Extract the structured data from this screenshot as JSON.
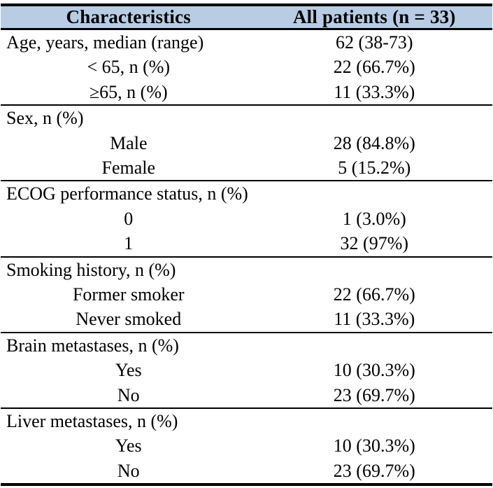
{
  "colors": {
    "header_bg": "#b8cce4",
    "rule": "#000000",
    "text": "#000000"
  },
  "table": {
    "columns": [
      "Characteristics",
      "All patients (n = 33)"
    ],
    "rows": [
      {
        "label": "Age, years, median (range)",
        "value": "62 (38-73)",
        "type": "category",
        "divider": false
      },
      {
        "label": "< 65, n (%)",
        "value": "22 (66.7%)",
        "type": "sub",
        "divider": false
      },
      {
        "label": "≥65, n (%)",
        "value": "11 (33.3%)",
        "type": "sub",
        "divider": false
      },
      {
        "label": "Sex, n (%)",
        "value": "",
        "type": "category",
        "divider": true
      },
      {
        "label": "Male",
        "value": "28 (84.8%)",
        "type": "sub",
        "divider": false
      },
      {
        "label": "Female",
        "value": "5 (15.2%)",
        "type": "sub",
        "divider": false
      },
      {
        "label": "ECOG performance status, n (%)",
        "value": "",
        "type": "category",
        "divider": true
      },
      {
        "label": "0",
        "value": "1 (3.0%)",
        "type": "sub",
        "divider": false
      },
      {
        "label": "1",
        "value": "32 (97%)",
        "type": "sub",
        "divider": false
      },
      {
        "label": "Smoking history, n (%)",
        "value": "",
        "type": "category",
        "divider": true
      },
      {
        "label": "Former smoker",
        "value": "22 (66.7%)",
        "type": "sub",
        "divider": false
      },
      {
        "label": "Never smoked",
        "value": "11 (33.3%)",
        "type": "sub",
        "divider": false
      },
      {
        "label": "Brain metastases, n (%)",
        "value": "",
        "type": "category",
        "divider": true
      },
      {
        "label": "Yes",
        "value": "10 (30.3%)",
        "type": "sub",
        "divider": false
      },
      {
        "label": "No",
        "value": "23 (69.7%)",
        "type": "sub",
        "divider": false
      },
      {
        "label": "Liver metastases, n (%)",
        "value": "",
        "type": "category",
        "divider": true
      },
      {
        "label": "Yes",
        "value": "10 (30.3%)",
        "type": "sub",
        "divider": false
      },
      {
        "label": "No",
        "value": "23 (69.7%)",
        "type": "sub",
        "divider": false
      }
    ]
  }
}
